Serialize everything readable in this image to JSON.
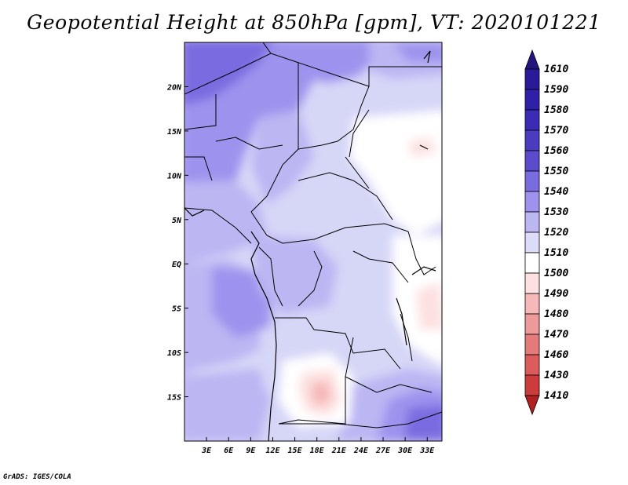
{
  "title": "Geopotential Height at 850hPa [gpm], VT: 2020101221",
  "credit": "GrADS: IGES/COLA",
  "map": {
    "projection": "latlon",
    "lon_range": [
      0,
      35
    ],
    "lat_range": [
      -20,
      25
    ],
    "x_ticks": [
      {
        "value": 3,
        "label": "3E"
      },
      {
        "value": 6,
        "label": "6E"
      },
      {
        "value": 9,
        "label": "9E"
      },
      {
        "value": 12,
        "label": "12E"
      },
      {
        "value": 15,
        "label": "15E"
      },
      {
        "value": 18,
        "label": "18E"
      },
      {
        "value": 21,
        "label": "21E"
      },
      {
        "value": 24,
        "label": "24E"
      },
      {
        "value": 27,
        "label": "27E"
      },
      {
        "value": 30,
        "label": "30E"
      },
      {
        "value": 33,
        "label": "33E"
      }
    ],
    "y_ticks": [
      {
        "value": 20,
        "label": "20N"
      },
      {
        "value": 15,
        "label": "15N"
      },
      {
        "value": 10,
        "label": "10N"
      },
      {
        "value": 5,
        "label": "5N"
      },
      {
        "value": 0,
        "label": "EQ"
      },
      {
        "value": -5,
        "label": "5S"
      },
      {
        "value": -10,
        "label": "10S"
      },
      {
        "value": -15,
        "label": "15S"
      }
    ]
  },
  "colorbar": {
    "levels": [
      {
        "label": "1610",
        "color": "#2a1a9a"
      },
      {
        "label": "1590",
        "color": "#3020a8"
      },
      {
        "label": "1580",
        "color": "#3a2cb4"
      },
      {
        "label": "1570",
        "color": "#4a3cc0"
      },
      {
        "label": "1560",
        "color": "#5a4ccc"
      },
      {
        "label": "1550",
        "color": "#7a6ce0"
      },
      {
        "label": "1540",
        "color": "#9d93ee"
      },
      {
        "label": "1530",
        "color": "#bcb6f3"
      },
      {
        "label": "1520",
        "color": "#dcdcf8"
      },
      {
        "label": "1510",
        "color": "#ffffff"
      },
      {
        "label": "1500",
        "color": "#fde0e0"
      },
      {
        "label": "1490",
        "color": "#f6b8b8"
      },
      {
        "label": "1480",
        "color": "#ee9a9a"
      },
      {
        "label": "1470",
        "color": "#e47a7a"
      },
      {
        "label": "1460",
        "color": "#dc5c5c"
      },
      {
        "label": "1430",
        "color": "#cc3c3c"
      },
      {
        "label": "1410",
        "color": "#bc2a2a"
      }
    ],
    "over_color": "#24147e",
    "under_color": "#b02020"
  }
}
